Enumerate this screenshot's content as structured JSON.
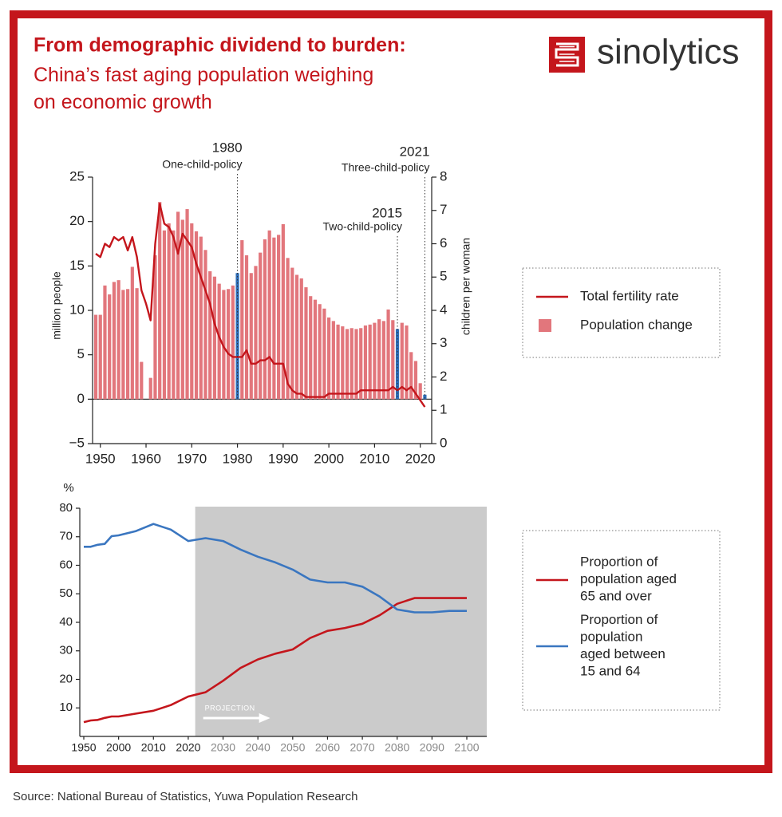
{
  "header": {
    "title": "From demographic dividend to burden:",
    "subtitle": "China’s fast aging population weighing\non economic growth",
    "logo": "sinolytics"
  },
  "source": "Source: National Bureau of Statistics, Yuwa Population Research",
  "chart_data": [
    {
      "type": "bar_line",
      "x": [
        1949,
        1950,
        1951,
        1952,
        1953,
        1954,
        1955,
        1956,
        1957,
        1958,
        1959,
        1960,
        1961,
        1962,
        1963,
        1964,
        1965,
        1966,
        1967,
        1968,
        1969,
        1970,
        1971,
        1972,
        1973,
        1974,
        1975,
        1976,
        1977,
        1978,
        1979,
        1980,
        1981,
        1982,
        1983,
        1984,
        1985,
        1986,
        1987,
        1988,
        1989,
        1990,
        1991,
        1992,
        1993,
        1994,
        1995,
        1996,
        1997,
        1998,
        1999,
        2000,
        2001,
        2002,
        2003,
        2004,
        2005,
        2006,
        2007,
        2008,
        2009,
        2010,
        2011,
        2012,
        2013,
        2014,
        2015,
        2016,
        2017,
        2018,
        2019,
        2020,
        2021
      ],
      "series": [
        {
          "name": "Total fertility rate",
          "type": "line",
          "axis": "y2",
          "color": "#c4161c",
          "values": [
            5.7,
            5.6,
            6.0,
            5.9,
            6.2,
            6.1,
            6.2,
            5.8,
            6.2,
            5.6,
            4.6,
            4.2,
            3.7,
            6.0,
            7.2,
            6.6,
            6.5,
            6.2,
            5.7,
            6.3,
            6.1,
            5.9,
            5.4,
            5.0,
            4.6,
            4.2,
            3.6,
            3.2,
            2.9,
            2.7,
            2.6,
            2.6,
            2.6,
            2.8,
            2.4,
            2.4,
            2.5,
            2.5,
            2.6,
            2.4,
            2.4,
            2.4,
            1.8,
            1.6,
            1.5,
            1.5,
            1.4,
            1.4,
            1.4,
            1.4,
            1.4,
            1.5,
            1.5,
            1.5,
            1.5,
            1.5,
            1.5,
            1.5,
            1.6,
            1.6,
            1.6,
            1.6,
            1.6,
            1.6,
            1.6,
            1.7,
            1.6,
            1.7,
            1.6,
            1.7,
            1.5,
            1.3,
            1.1
          ]
        },
        {
          "name": "Population change",
          "type": "bar",
          "color": "#e2767c",
          "values": [
            9.5,
            9.5,
            12.8,
            11.8,
            13.2,
            13.4,
            12.3,
            12.4,
            14.9,
            12.5,
            4.2,
            null,
            2.4,
            16.2,
            22.2,
            19.0,
            19.8,
            19.0,
            21.1,
            20.2,
            21.4,
            19.8,
            18.9,
            18.3,
            16.8,
            14.4,
            13.8,
            13.0,
            12.3,
            12.4,
            12.8,
            14.2,
            17.9,
            16.2,
            14.2,
            15.0,
            16.5,
            18.0,
            19.0,
            18.2,
            18.5,
            19.7,
            15.9,
            14.8,
            14.0,
            13.6,
            12.6,
            11.6,
            11.2,
            10.7,
            10.2,
            9.2,
            8.8,
            8.4,
            8.2,
            7.9,
            8.0,
            7.9,
            8.0,
            8.3,
            8.4,
            8.6,
            9.0,
            8.8,
            10.1,
            8.9,
            7.9,
            8.6,
            8.3,
            5.3,
            4.3,
            1.8,
            0.5
          ]
        }
      ],
      "highlight_color": "#2e6db8",
      "annotations": [
        {
          "year": 1980,
          "text": "One-child-policy"
        },
        {
          "year": 2015,
          "text": "Two-child-policy"
        },
        {
          "year": 2021,
          "text": "Three-child-policy"
        }
      ],
      "xlim": [
        1948.3,
        2022.5
      ],
      "xticks": [
        1950,
        1960,
        1970,
        1980,
        1990,
        2000,
        2010,
        2020
      ],
      "ylim": [
        -5,
        25
      ],
      "yticks": [
        {
          "value": -5,
          "label": "−5"
        },
        0,
        5,
        10,
        15,
        20,
        25
      ],
      "y2lim": [
        0,
        8
      ],
      "y2ticks": [
        0,
        1,
        2,
        3,
        4,
        5,
        6,
        7,
        8
      ],
      "y_label": "million people",
      "y2_label": "children per woman",
      "legend": "right"
    },
    {
      "type": "line",
      "y_label": "%",
      "x": [
        1950,
        1960,
        1970,
        1980,
        1990,
        2000,
        2005,
        2010,
        2015,
        2020,
        2025,
        2030,
        2035,
        2040,
        2045,
        2050,
        2055,
        2060,
        2065,
        2070,
        2075,
        2080,
        2085,
        2090,
        2095,
        2100
      ],
      "series": [
        {
          "name": "Proportion of\npopulation aged\n65 and over",
          "color": "#c4161c",
          "values": [
            5,
            5.6,
            5.8,
            6.5,
            7,
            7,
            8,
            9,
            11,
            14,
            15.5,
            19.5,
            24,
            27,
            29,
            30.5,
            34.5,
            37,
            38,
            39.5,
            42.5,
            46.5,
            48.5,
            48.5,
            48.5,
            48.5
          ]
        },
        {
          "name": "Proportion of\npopulation\naged between\n15 and 64",
          "color": "#3a76c0",
          "values": [
            66.5,
            66.5,
            67.2,
            67.5,
            70.2,
            70.5,
            72,
            74.5,
            72.5,
            68.5,
            69.5,
            68.5,
            65.5,
            63,
            61,
            58.5,
            55,
            54,
            54,
            52.5,
            49,
            44.5,
            43.5,
            43.5,
            44,
            44
          ]
        }
      ],
      "projection": {
        "from": 2022,
        "label": "PROJECTION",
        "color": "#cbcbcb"
      },
      "xlim": [
        1950,
        2100
      ],
      "xticks": [
        1950,
        2000,
        2010,
        2020,
        2030,
        2040,
        2050,
        2060,
        2070,
        2080,
        2090,
        2100
      ],
      "ylim": [
        0,
        80
      ],
      "yticks": [
        10,
        20,
        30,
        40,
        50,
        60,
        70,
        80
      ],
      "legend": "right"
    }
  ]
}
